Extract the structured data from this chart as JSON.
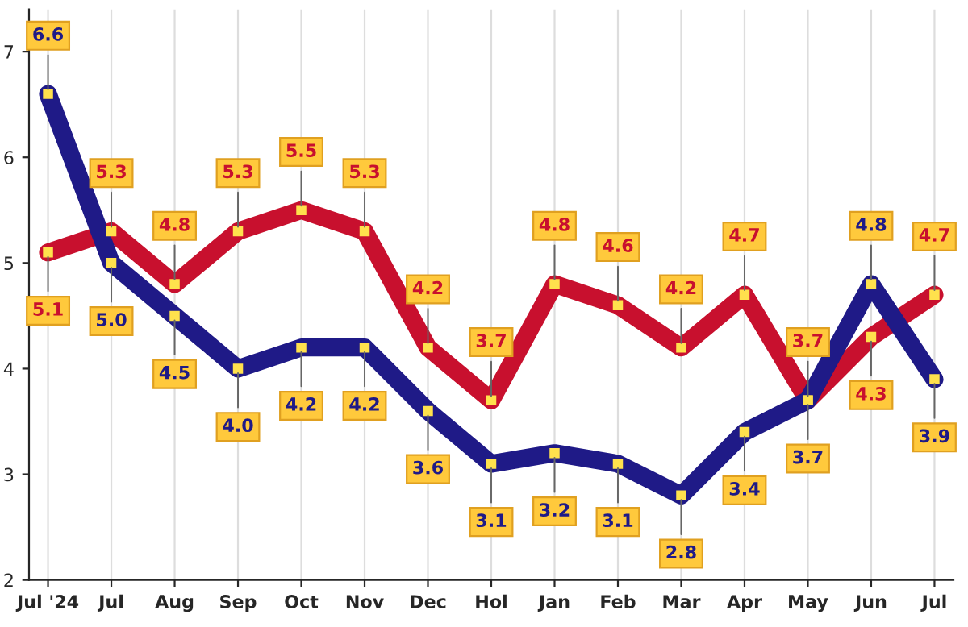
{
  "chart_data": {
    "type": "line",
    "categories": [
      "Jul '24",
      "Jul",
      "Aug",
      "Sep",
      "Oct",
      "Nov",
      "Dec",
      "Hol",
      "Jan",
      "Feb",
      "Mar",
      "Apr",
      "May",
      "Jun",
      "Jul"
    ],
    "series": [
      {
        "color": "#c8102e",
        "values": [
          5.1,
          5.3,
          4.8,
          5.3,
          5.5,
          5.3,
          4.2,
          3.7,
          4.8,
          4.6,
          4.2,
          4.7,
          3.7,
          4.3,
          4.7
        ],
        "value_labels": [
          "5.1",
          "5.3",
          "4.8",
          "5.3",
          "5.5",
          "5.3",
          "4.2",
          "3.7",
          "4.8",
          "4.6",
          "4.2",
          "4.7",
          "3.7",
          "4.3",
          "4.7"
        ]
      },
      {
        "color": "#1f1a87",
        "values": [
          6.6,
          5.0,
          4.5,
          4.0,
          4.2,
          4.2,
          3.6,
          3.1,
          3.2,
          3.1,
          2.8,
          3.4,
          3.7,
          4.8,
          3.9
        ],
        "value_labels": [
          "6.6",
          "5.0",
          "4.5",
          "4.0",
          "4.2",
          "4.2",
          "3.6",
          "3.1",
          "3.2",
          "3.1",
          "2.8",
          "3.4",
          "3.7",
          "4.8",
          "3.9"
        ]
      }
    ],
    "ylim": [
      2,
      7.4
    ],
    "yticks": [
      2,
      3,
      4,
      5,
      6,
      7
    ],
    "grid": "x",
    "marker": "square",
    "line_style": "solid",
    "legend": false
  }
}
